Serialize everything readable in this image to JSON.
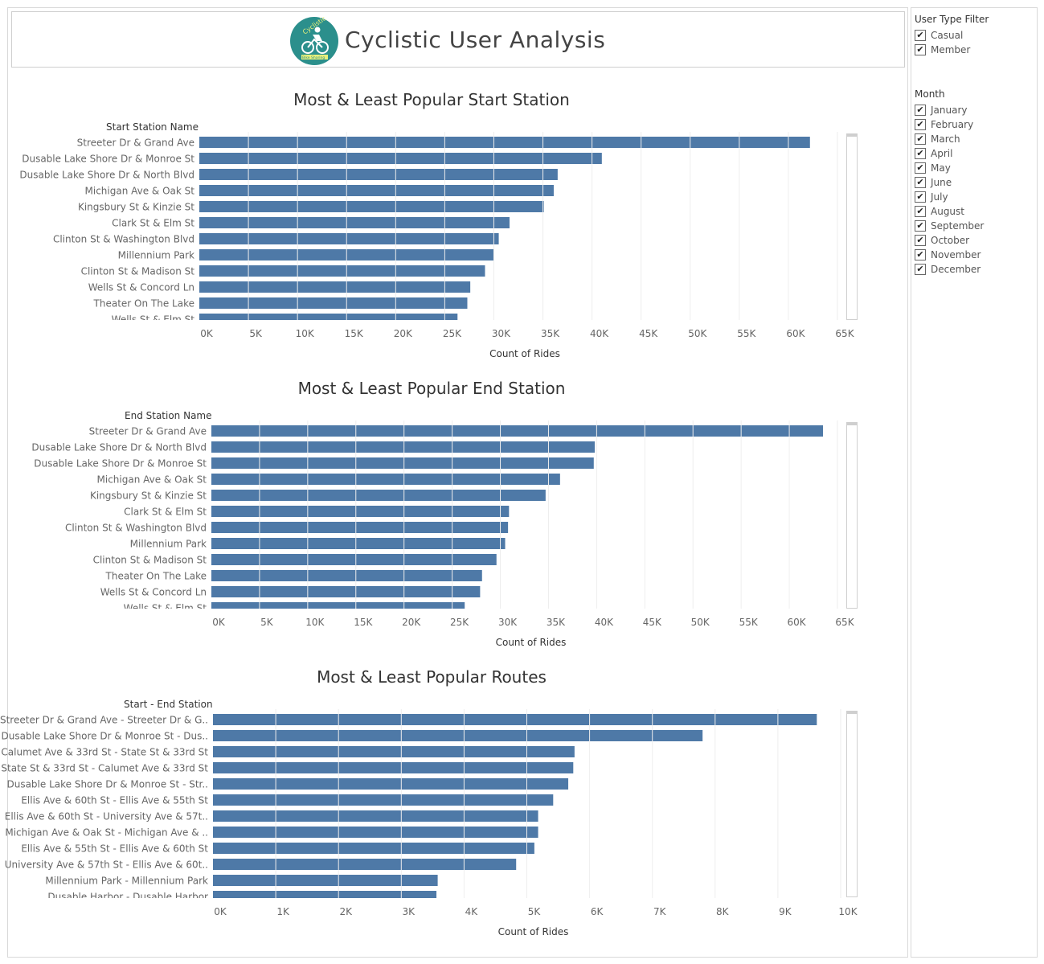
{
  "header": {
    "title": "Cyclistic User Analysis",
    "logo_text_top": "Cyclistic",
    "logo_text_bottom": "Bike Sharing"
  },
  "filters": {
    "user_type": {
      "title": "User Type Filter",
      "options": [
        "Casual",
        "Member"
      ]
    },
    "month": {
      "title": "Month",
      "options": [
        "January",
        "February",
        "March",
        "April",
        "May",
        "June",
        "July",
        "August",
        "September",
        "October",
        "November",
        "December"
      ]
    },
    "checkmark": "✔"
  },
  "chart_data": [
    {
      "type": "bar",
      "orientation": "horizontal",
      "title": "Most & Least Popular Start Station",
      "ylabel": "Start Station Name",
      "xlabel": "Count of Rides",
      "xlim": [
        0,
        65000
      ],
      "xticks": [
        "0K",
        "5K",
        "10K",
        "15K",
        "20K",
        "25K",
        "30K",
        "35K",
        "40K",
        "45K",
        "50K",
        "55K",
        "60K",
        "65K"
      ],
      "color": "#4e79a7",
      "categories": [
        "Streeter Dr & Grand Ave",
        "Dusable Lake Shore Dr & Monroe St",
        "Dusable Lake Shore Dr & North Blvd",
        "Michigan Ave & Oak St",
        "Kingsbury St & Kinzie St",
        "Clark St & Elm St",
        "Clinton St & Washington Blvd",
        "Millennium Park",
        "Clinton St & Madison St",
        "Wells St & Concord Ln",
        "Theater On The Lake",
        "Wells St & Elm St"
      ],
      "values": [
        62200,
        41000,
        36500,
        36100,
        35100,
        31600,
        30500,
        30000,
        29100,
        27600,
        27300,
        26300
      ]
    },
    {
      "type": "bar",
      "orientation": "horizontal",
      "title": "Most & Least Popular End Station",
      "ylabel": "End Station Name",
      "xlabel": "Count of Rides",
      "xlim": [
        0,
        65000
      ],
      "xticks": [
        "0K",
        "5K",
        "10K",
        "15K",
        "20K",
        "25K",
        "30K",
        "35K",
        "40K",
        "45K",
        "50K",
        "55K",
        "60K",
        "65K"
      ],
      "color": "#4e79a7",
      "categories": [
        "Streeter Dr & Grand Ave",
        "Dusable Lake Shore Dr & North Blvd",
        "Dusable Lake Shore Dr & Monroe St",
        "Michigan Ave & Oak St",
        "Kingsbury St & Kinzie St",
        "Clark St & Elm St",
        "Clinton St & Washington Blvd",
        "Millennium Park",
        "Clinton St & Madison St",
        "Theater On The Lake",
        "Wells St & Concord Ln",
        "Wells St & Elm St"
      ],
      "values": [
        63500,
        39800,
        39700,
        36200,
        34700,
        30900,
        30800,
        30500,
        29600,
        28100,
        27900,
        26300
      ]
    },
    {
      "type": "bar",
      "orientation": "horizontal",
      "title": "Most & Least Popular Routes",
      "ylabel": "Start - End Station",
      "xlabel": "Count of Rides",
      "xlim": [
        0,
        10000
      ],
      "xticks": [
        "0K",
        "1K",
        "2K",
        "3K",
        "4K",
        "5K",
        "6K",
        "7K",
        "8K",
        "9K",
        "10K"
      ],
      "color": "#4e79a7",
      "categories": [
        "Streeter Dr & Grand Ave - Streeter Dr & G..",
        "Dusable Lake Shore Dr & Monroe St - Dus..",
        "Calumet Ave & 33rd St - State St & 33rd St",
        "State St & 33rd St - Calumet Ave & 33rd St",
        "Dusable Lake Shore Dr & Monroe St - Str..",
        "Ellis Ave & 60th St - Ellis Ave & 55th St",
        "Ellis Ave & 60th St - University Ave & 57t..",
        "Michigan Ave & Oak St - Michigan Ave & ..",
        "Ellis Ave & 55th St - Ellis Ave & 60th St",
        "University Ave & 57th St - Ellis Ave & 60t..",
        "Millennium Park - Millennium Park",
        "Dusable Harbor - Dusable Harbor"
      ],
      "values": [
        9620,
        7800,
        5760,
        5740,
        5660,
        5420,
        5180,
        5180,
        5120,
        4830,
        3580,
        3560
      ]
    }
  ]
}
